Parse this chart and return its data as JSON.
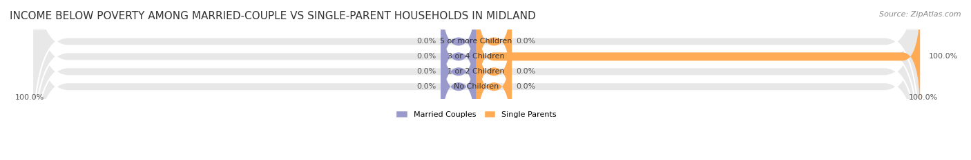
{
  "title": "INCOME BELOW POVERTY AMONG MARRIED-COUPLE VS SINGLE-PARENT HOUSEHOLDS IN MIDLAND",
  "source": "Source: ZipAtlas.com",
  "categories": [
    "No Children",
    "1 or 2 Children",
    "3 or 4 Children",
    "5 or more Children"
  ],
  "married_values": [
    0.0,
    0.0,
    0.0,
    0.0
  ],
  "single_values": [
    0.0,
    0.0,
    100.0,
    0.0
  ],
  "married_color": "#9999CC",
  "single_color": "#FFAA55",
  "bar_bg_color": "#E8E8E8",
  "married_label": "Married Couples",
  "single_label": "Single Parents",
  "title_fontsize": 11,
  "source_fontsize": 8,
  "label_fontsize": 8,
  "category_fontsize": 8,
  "value_fontsize": 8,
  "bar_height": 0.55,
  "x_max": 100,
  "left_value": "100.0%",
  "right_value": "100.0%",
  "background_color": "#FFFFFF"
}
